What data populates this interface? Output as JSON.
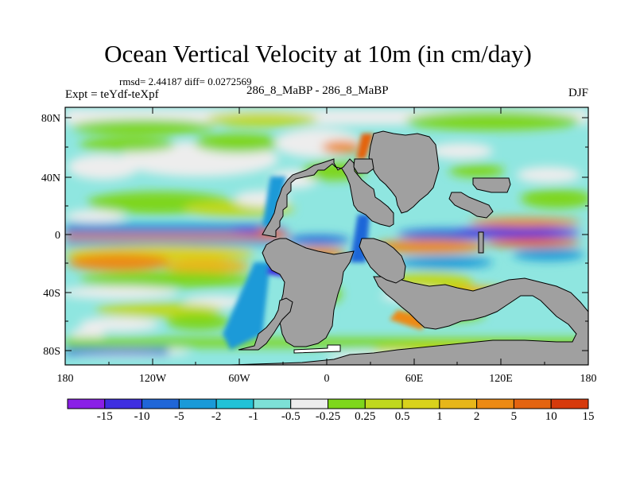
{
  "title": "Ocean Vertical Velocity at 10m (in cm/day)",
  "stats": "rmsd= 2.44187 diff= 0.0272569",
  "expt_label": "Expt = teYdf-teXpf",
  "expt_names": "286_8_MaBP - 286_8_MaBP",
  "season": "DJF",
  "lat_ticks": [
    "80N",
    "40N",
    "0",
    "40S",
    "80S"
  ],
  "lon_ticks": [
    "180",
    "120W",
    "60W",
    "0",
    "60E",
    "120E",
    "180"
  ],
  "colorbar": {
    "labels": [
      "-15",
      "-10",
      "-5",
      "-2",
      "-1",
      "-0.5",
      "-0.25",
      "0.25",
      "0.5",
      "1",
      "2",
      "5",
      "10",
      "15"
    ],
    "colors": [
      "#8a1fe6",
      "#3e2ee0",
      "#1f66d8",
      "#1a9ad8",
      "#22c2d6",
      "#7de0d6",
      "#ededed",
      "#7ed61c",
      "#c0d81e",
      "#d9d21c",
      "#e7b61a",
      "#ec8a14",
      "#e46410",
      "#d63a0c"
    ]
  },
  "colors": {
    "land": "#a0a0a0",
    "ocean_background": "#8fe6e0"
  }
}
